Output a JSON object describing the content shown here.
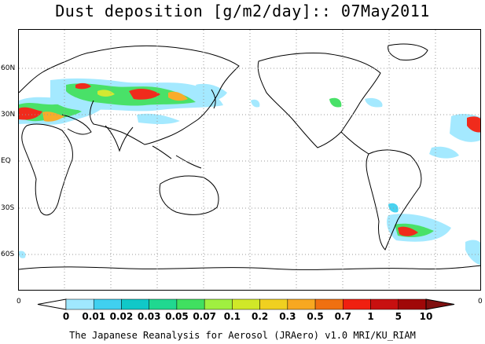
{
  "title": "Dust deposition [g/m2/day]:: 07May2011",
  "lat_labels": [
    "60N",
    "30N",
    "EQ",
    "30S",
    "60S"
  ],
  "colorbar": {
    "labels": [
      "0",
      "0.01",
      "0.02",
      "0.03",
      "0.05",
      "0.07",
      "0.1",
      "0.2",
      "0.3",
      "0.5",
      "0.7",
      "1",
      "5",
      "10"
    ],
    "colors": [
      "#ffffff",
      "#a0e8ff",
      "#40d0f0",
      "#10c8c8",
      "#20d890",
      "#40e060",
      "#a0f040",
      "#d0e828",
      "#f0d020",
      "#f8a820",
      "#f07010",
      "#f02010",
      "#c81010",
      "#a00808",
      "#801010"
    ],
    "left_end": "0",
    "right_end": "0"
  },
  "footer": "The Japanese Reanalysis for Aerosol (JRAero) v1.0 MRI/KU_RIAM"
}
